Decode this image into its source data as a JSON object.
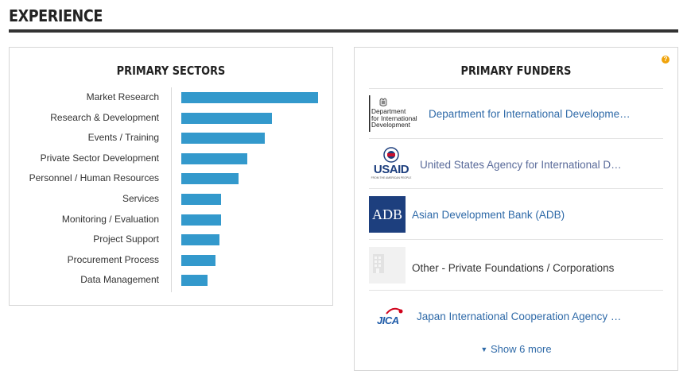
{
  "section": {
    "title": "EXPERIENCE"
  },
  "sectors": {
    "title": "PRIMARY SECTORS",
    "chart_data": {
      "type": "bar",
      "orientation": "horizontal",
      "categories": [
        "Market Research",
        "Research & Development",
        "Events / Training",
        "Private Sector Development",
        "Personnel / Human Resources",
        "Services",
        "Monitoring / Evaluation",
        "Project Support",
        "Procurement Process",
        "Data Management"
      ],
      "values": [
        100,
        66,
        61,
        48,
        42,
        29,
        29,
        28,
        25,
        19
      ],
      "xlim": [
        0,
        100
      ],
      "bar_color": "#3399cc",
      "grid": false
    }
  },
  "funders": {
    "title": "PRIMARY FUNDERS",
    "help_icon": "?",
    "items": [
      {
        "name": "Department for International Developme…",
        "logo": "dfid-crest-logo",
        "logo_text": [
          "Department",
          "for International",
          "Development"
        ],
        "linked": true
      },
      {
        "name": "United States Agency for International D…",
        "logo": "usaid-logo",
        "logo_text": [
          "USAID",
          "FROM THE AMERICAN PEOPLE"
        ],
        "linked": true
      },
      {
        "name": "Asian Development Bank (ADB)",
        "logo": "adb-logo",
        "logo_text": [
          "ADB"
        ],
        "linked": true
      },
      {
        "name": "Other - Private Foundations / Corporations",
        "logo": "building-placeholder-icon",
        "logo_text": [],
        "linked": false
      },
      {
        "name": "Japan International Cooperation Agency …",
        "logo": "jica-logo",
        "logo_text": [
          "JICA"
        ],
        "linked": true
      }
    ],
    "show_more_label": "Show 6 more"
  },
  "colors": {
    "accent": "#3399cc",
    "link": "#2f6aa8",
    "adb_blue": "#1d3f7e",
    "usaid_red": "#c8102e",
    "help_orange": "#f0a30a"
  }
}
